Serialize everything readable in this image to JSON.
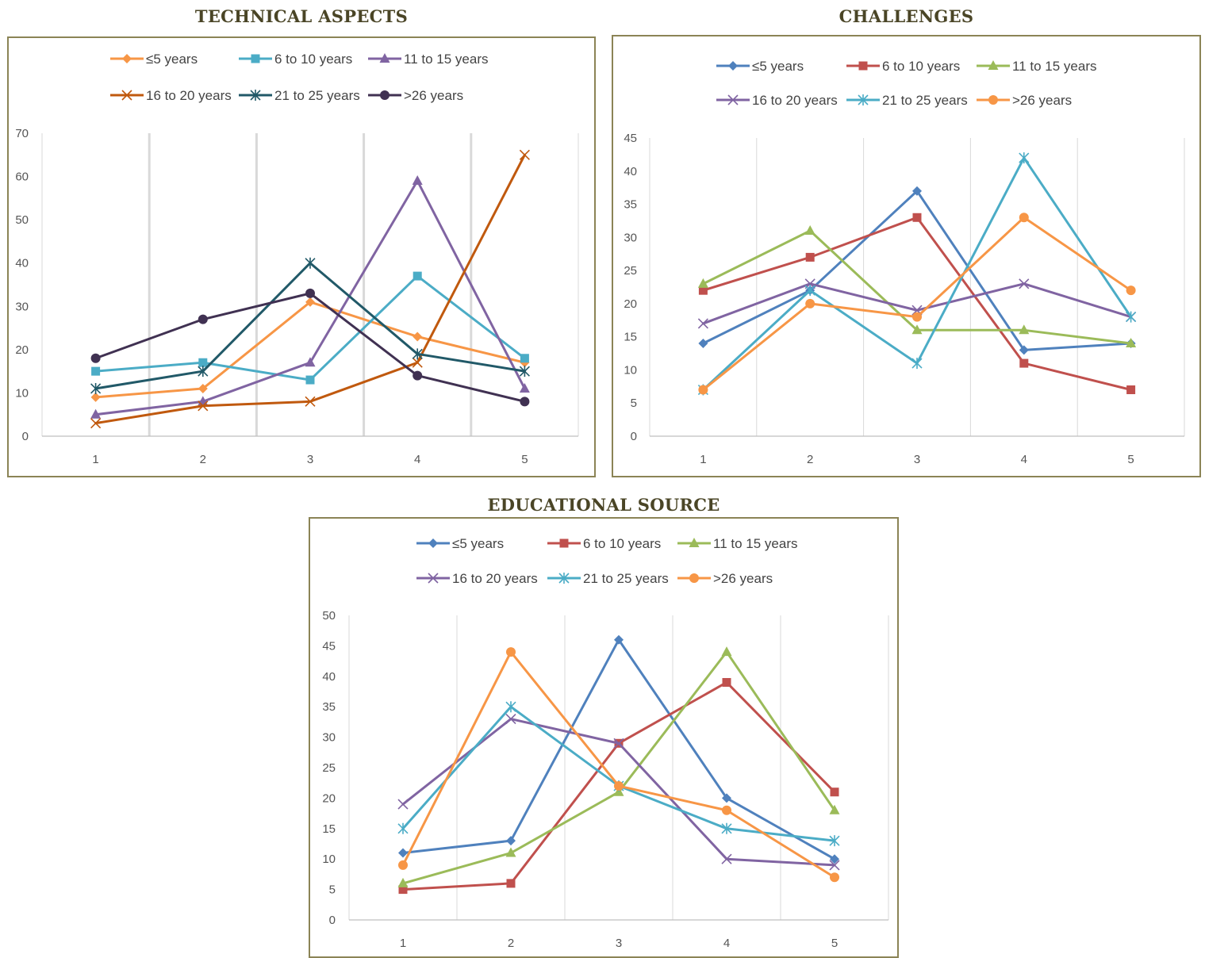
{
  "chart_data": [
    {
      "type": "line",
      "title": "TECHNICAL ASPECTS",
      "x": [
        1,
        2,
        3,
        4,
        5
      ],
      "xlabel": "",
      "ylabel": "",
      "ylim": [
        0,
        70
      ],
      "yticks": [
        0,
        10,
        20,
        30,
        40,
        50,
        60,
        70
      ],
      "grid": "vertical",
      "legend_position": "top",
      "series": [
        {
          "name": "≤5 years",
          "values": [
            9,
            11,
            31,
            23,
            17
          ],
          "color": "#f79646",
          "marker": "diamond"
        },
        {
          "name": "6 to 10 years",
          "values": [
            15,
            17,
            13,
            37,
            18
          ],
          "color": "#4bacc6",
          "marker": "square"
        },
        {
          "name": "11 to 15 years",
          "values": [
            5,
            8,
            17,
            59,
            11
          ],
          "color": "#8064a2",
          "marker": "triangle"
        },
        {
          "name": "16 to 20 years",
          "values": [
            3,
            7,
            8,
            17,
            65
          ],
          "color": "#c0590e",
          "marker": "x"
        },
        {
          "name": "21 to 25 years",
          "values": [
            11,
            15,
            40,
            19,
            15
          ],
          "color": "#215968",
          "marker": "star"
        },
        {
          "name": ">26 years",
          "values": [
            18,
            27,
            33,
            14,
            8
          ],
          "color": "#403152",
          "marker": "circle"
        }
      ]
    },
    {
      "type": "line",
      "title": "CHALLENGES",
      "x": [
        1,
        2,
        3,
        4,
        5
      ],
      "xlabel": "",
      "ylabel": "",
      "ylim": [
        0,
        45
      ],
      "yticks": [
        0,
        5,
        10,
        15,
        20,
        25,
        30,
        35,
        40,
        45
      ],
      "grid": "vertical",
      "legend_position": "top",
      "series": [
        {
          "name": "≤5 years",
          "values": [
            14,
            22,
            37,
            13,
            14
          ],
          "color": "#4f81bd",
          "marker": "diamond"
        },
        {
          "name": "6 to 10 years",
          "values": [
            22,
            27,
            33,
            11,
            7
          ],
          "color": "#c0504d",
          "marker": "square"
        },
        {
          "name": "11 to 15 years",
          "values": [
            23,
            31,
            16,
            16,
            14
          ],
          "color": "#9bbb59",
          "marker": "triangle"
        },
        {
          "name": "16 to 20 years",
          "values": [
            17,
            23,
            19,
            23,
            18
          ],
          "color": "#8064a2",
          "marker": "x"
        },
        {
          "name": "21 to 25 years",
          "values": [
            7,
            22,
            11,
            42,
            18
          ],
          "color": "#4bacc6",
          "marker": "star"
        },
        {
          "name": ">26 years",
          "values": [
            7,
            20,
            18,
            33,
            22
          ],
          "color": "#f79646",
          "marker": "circle"
        }
      ]
    },
    {
      "type": "line",
      "title": "EDUCATIONAL SOURCE",
      "x": [
        1,
        2,
        3,
        4,
        5
      ],
      "xlabel": "",
      "ylabel": "",
      "ylim": [
        0,
        50
      ],
      "yticks": [
        0,
        5,
        10,
        15,
        20,
        25,
        30,
        35,
        40,
        45,
        50
      ],
      "grid": "vertical",
      "legend_position": "top",
      "series": [
        {
          "name": "≤5 years",
          "values": [
            11,
            13,
            46,
            20,
            10
          ],
          "color": "#4f81bd",
          "marker": "diamond"
        },
        {
          "name": "6 to 10 years",
          "values": [
            5,
            6,
            29,
            39,
            21
          ],
          "color": "#c0504d",
          "marker": "square"
        },
        {
          "name": "11 to 15 years",
          "values": [
            6,
            11,
            21,
            44,
            18
          ],
          "color": "#9bbb59",
          "marker": "triangle"
        },
        {
          "name": "16 to 20 years",
          "values": [
            19,
            33,
            29,
            10,
            9
          ],
          "color": "#8064a2",
          "marker": "x"
        },
        {
          "name": "21 to 25 years",
          "values": [
            15,
            35,
            22,
            15,
            13
          ],
          "color": "#4bacc6",
          "marker": "star"
        },
        {
          "name": ">26 years",
          "values": [
            9,
            44,
            22,
            18,
            7
          ],
          "color": "#f79646",
          "marker": "circle"
        }
      ]
    }
  ]
}
